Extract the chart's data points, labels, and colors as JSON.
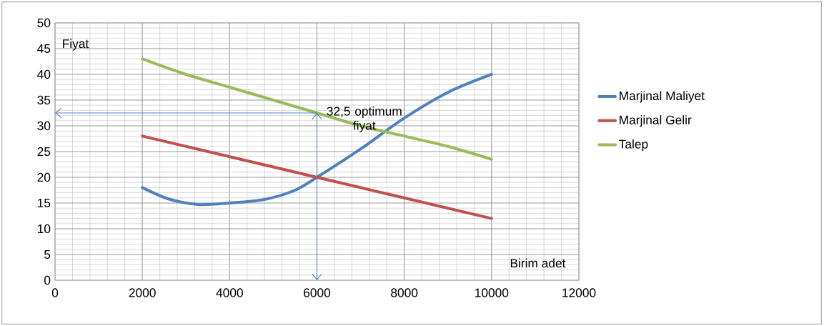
{
  "chart_data": {
    "type": "line",
    "xlabel": "Birim adet",
    "ylabel": "Fiyat",
    "xlim": [
      0,
      12000
    ],
    "ylim": [
      0,
      50
    ],
    "xticks": [
      0,
      2000,
      4000,
      6000,
      8000,
      10000,
      12000
    ],
    "yticks": [
      0,
      5,
      10,
      15,
      20,
      25,
      30,
      35,
      40,
      45,
      50
    ],
    "grid": true,
    "legend": "right",
    "series": [
      {
        "name": "Marjinal Maliyet",
        "color": "#4f81bd",
        "x": [
          2000,
          2600,
          3300,
          4000,
          4800,
          5500,
          6000,
          7000,
          8000,
          9000,
          10000
        ],
        "values": [
          18,
          15.8,
          14.7,
          15,
          15.7,
          17.5,
          20,
          25.5,
          31.5,
          36.5,
          40
        ]
      },
      {
        "name": "Marjinal Gelir",
        "color": "#c0504d",
        "x": [
          2000,
          6000,
          10000
        ],
        "values": [
          28,
          20,
          12
        ]
      },
      {
        "name": "Talep",
        "color": "#9bbb59",
        "x": [
          2000,
          3000,
          4000,
          5000,
          6000,
          7000,
          8000,
          9000,
          10000
        ],
        "values": [
          43,
          40,
          37.5,
          35,
          32.5,
          30,
          28,
          26,
          23.5
        ]
      }
    ],
    "annotations": [
      {
        "text": "32,5 optimum fiyat",
        "x": 6000,
        "y": 32.5
      }
    ]
  }
}
